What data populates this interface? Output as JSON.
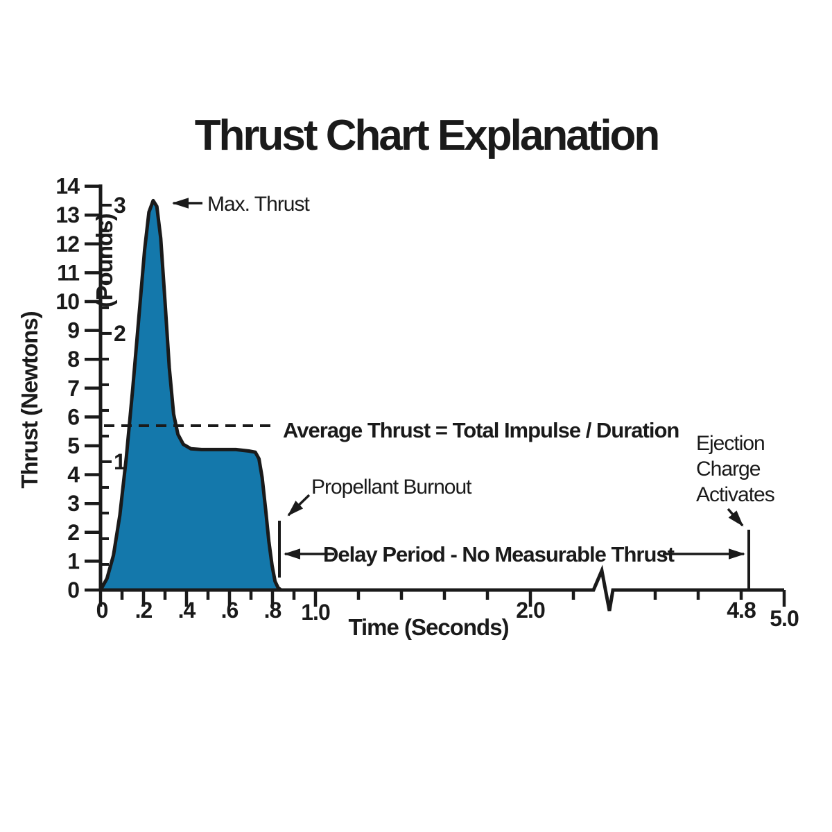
{
  "title": "Thrust Chart Explanation",
  "colors": {
    "curve_fill": "#1478ab",
    "ink": "#1a1a1a",
    "background": "#ffffff"
  },
  "chart_data": {
    "type": "area",
    "title": "Thrust Chart Explanation",
    "xlabel": "Time (Seconds)",
    "ylabel_newtons": "Thrust (Newtons)",
    "ylabel_pounds": "(Pounds)",
    "xlim": [
      0,
      5.0
    ],
    "ylim_newtons": [
      0,
      14
    ],
    "ylim_pounds": [
      0,
      3
    ],
    "grid": false,
    "x_axis_break_between": [
      2.2,
      4.4
    ],
    "x_ticks": [
      {
        "t": 0.0,
        "label": "0",
        "major": true
      },
      {
        "t": 0.1
      },
      {
        "t": 0.2,
        "label": ".2",
        "major": true
      },
      {
        "t": 0.3
      },
      {
        "t": 0.4,
        "label": ".4",
        "major": true
      },
      {
        "t": 0.5
      },
      {
        "t": 0.6,
        "label": ".6",
        "major": true
      },
      {
        "t": 0.7
      },
      {
        "t": 0.8,
        "label": ".8",
        "major": true
      },
      {
        "t": 0.9
      },
      {
        "t": 1.0,
        "label": "1.0",
        "major": true
      },
      {
        "t": 1.2
      },
      {
        "t": 1.4
      },
      {
        "t": 1.6
      },
      {
        "t": 1.8
      },
      {
        "t": 2.0,
        "label": "2.0",
        "major": true
      },
      {
        "t": 2.2
      },
      {
        "t": 4.4
      },
      {
        "t": 4.6
      },
      {
        "t": 4.8,
        "label": "4.8"
      },
      {
        "t": 5.0,
        "label": "5.0",
        "major": true
      }
    ],
    "y_ticks_newtons": [
      0,
      1,
      2,
      3,
      4,
      5,
      6,
      7,
      8,
      9,
      10,
      11,
      12,
      13,
      14
    ],
    "y_ticks_pounds": {
      "labeled": [
        1,
        2,
        3
      ],
      "minor_step": 0.2,
      "max": 3.0
    },
    "newtons_per_pound": 4.448,
    "series": [
      {
        "name": "thrust-curve",
        "points_time_s_vs_newtons": [
          [
            0.0,
            0.0
          ],
          [
            0.03,
            0.4
          ],
          [
            0.06,
            1.2
          ],
          [
            0.09,
            2.6
          ],
          [
            0.12,
            4.6
          ],
          [
            0.15,
            7.0
          ],
          [
            0.18,
            9.6
          ],
          [
            0.205,
            11.8
          ],
          [
            0.225,
            13.1
          ],
          [
            0.245,
            13.5
          ],
          [
            0.262,
            13.3
          ],
          [
            0.28,
            12.2
          ],
          [
            0.3,
            10.0
          ],
          [
            0.32,
            7.7
          ],
          [
            0.34,
            6.1
          ],
          [
            0.36,
            5.4
          ],
          [
            0.385,
            5.05
          ],
          [
            0.42,
            4.9
          ],
          [
            0.47,
            4.87
          ],
          [
            0.55,
            4.87
          ],
          [
            0.63,
            4.87
          ],
          [
            0.69,
            4.82
          ],
          [
            0.72,
            4.78
          ],
          [
            0.737,
            4.55
          ],
          [
            0.752,
            3.9
          ],
          [
            0.768,
            2.8
          ],
          [
            0.783,
            1.7
          ],
          [
            0.798,
            0.85
          ],
          [
            0.812,
            0.3
          ],
          [
            0.826,
            0.08
          ],
          [
            0.84,
            0.0
          ]
        ]
      }
    ],
    "average_thrust_newtons": 5.7,
    "max_thrust_newtons": 13.5,
    "propellant_burnout_time_s": 0.83,
    "ejection_charge_time_s": 4.8
  },
  "annotations": {
    "max_thrust": "Max. Thrust",
    "average_thrust": "Average Thrust = Total Impulse / Duration",
    "propellant_burnout": "Propellant Burnout",
    "delay_period": "Delay Period - No Measurable Thrust",
    "ejection_charge": [
      "Ejection",
      "Charge",
      "Activates"
    ]
  }
}
